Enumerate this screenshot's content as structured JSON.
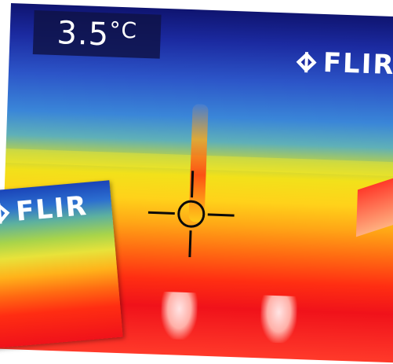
{
  "temperature": {
    "value": "3.5",
    "unit": "°C"
  },
  "brand": {
    "name": "FLIR"
  },
  "icons": {
    "brand_icon": "diamond-logo-icon",
    "reticle": "crosshair-icon"
  },
  "colors": {
    "readout_background": "#0f1246",
    "readout_text": "#ffffff",
    "reticle": "#0a0a0a",
    "cold": "#0f1470",
    "hot": "#f0121a"
  }
}
